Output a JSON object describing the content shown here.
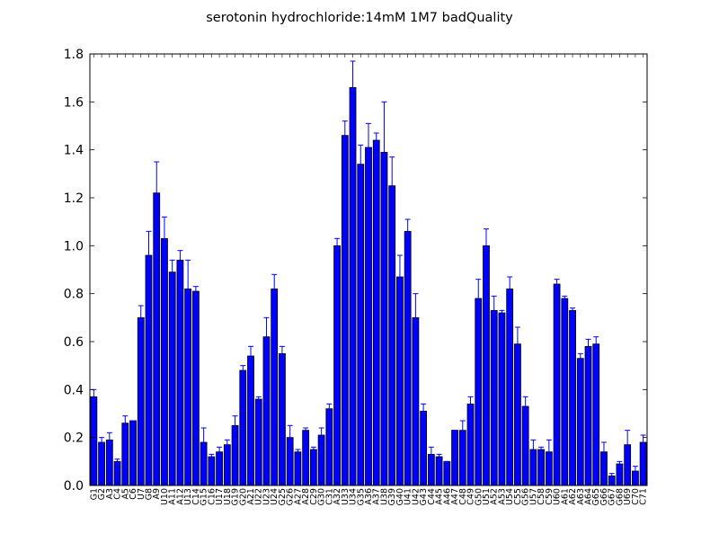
{
  "chart_data": {
    "type": "bar",
    "title": "serotonin hydrochloride:14mM  1M7  badQuality",
    "xlabel": "",
    "ylabel": "",
    "ylim": [
      0,
      1.8
    ],
    "yticks": [
      "0.0",
      "0.2",
      "0.4",
      "0.6",
      "0.8",
      "1.0",
      "1.2",
      "1.4",
      "1.6",
      "1.8"
    ],
    "bar_color": "#0000ff",
    "error_color": "#0000ff",
    "grid": false,
    "legend": "none",
    "categories": [
      "G1",
      "G2",
      "A3",
      "C4",
      "A5",
      "C6",
      "U7",
      "G8",
      "A9",
      "U10",
      "A11",
      "A12",
      "U13",
      "C14",
      "G15",
      "C16",
      "U17",
      "U18",
      "G19",
      "G20",
      "A21",
      "U22",
      "U23",
      "U24",
      "G25",
      "G26",
      "A27",
      "A28",
      "C29",
      "G30",
      "C31",
      "A32",
      "U33",
      "U34",
      "G35",
      "A36",
      "A37",
      "U38",
      "G39",
      "G40",
      "U41",
      "U42",
      "G43",
      "C44",
      "A45",
      "A46",
      "A47",
      "C48",
      "C49",
      "G50",
      "U51",
      "A52",
      "A53",
      "U54",
      "C55",
      "G56",
      "U57",
      "C58",
      "C59",
      "U60",
      "A61",
      "A62",
      "A63",
      "A64",
      "G65",
      "G66",
      "G67",
      "G68",
      "U69",
      "C70",
      "C71"
    ],
    "values": [
      0.37,
      0.18,
      0.19,
      0.1,
      0.26,
      0.27,
      0.7,
      0.96,
      1.22,
      1.03,
      0.89,
      0.94,
      0.82,
      0.81,
      0.18,
      0.12,
      0.14,
      0.17,
      0.25,
      0.48,
      0.54,
      0.36,
      0.62,
      0.82,
      0.55,
      0.2,
      0.14,
      0.23,
      0.15,
      0.21,
      0.32,
      1.0,
      1.46,
      1.66,
      1.34,
      1.41,
      1.44,
      1.39,
      1.25,
      0.87,
      1.06,
      0.7,
      0.31,
      0.13,
      0.12,
      0.1,
      0.23,
      0.23,
      0.34,
      0.78,
      1.0,
      0.73,
      0.72,
      0.82,
      0.59,
      0.33,
      0.15,
      0.15,
      0.14,
      0.84,
      0.78,
      0.73,
      0.53,
      0.58,
      0.59,
      0.14,
      0.04,
      0.09,
      0.17,
      0.06,
      0.18
    ],
    "errors": [
      0.03,
      0.02,
      0.03,
      0.01,
      0.03,
      0.0,
      0.05,
      0.1,
      0.13,
      0.09,
      0.05,
      0.04,
      0.12,
      0.02,
      0.06,
      0.01,
      0.02,
      0.02,
      0.04,
      0.02,
      0.04,
      0.01,
      0.08,
      0.06,
      0.03,
      0.05,
      0.01,
      0.01,
      0.01,
      0.03,
      0.02,
      0.03,
      0.06,
      0.11,
      0.08,
      0.1,
      0.03,
      0.21,
      0.12,
      0.09,
      0.05,
      0.1,
      0.03,
      0.03,
      0.01,
      0.0,
      0.0,
      0.04,
      0.03,
      0.08,
      0.07,
      0.06,
      0.01,
      0.05,
      0.07,
      0.04,
      0.04,
      0.01,
      0.05,
      0.02,
      0.01,
      0.01,
      0.02,
      0.03,
      0.03,
      0.04,
      0.01,
      0.01,
      0.06,
      0.02,
      0.03
    ]
  }
}
